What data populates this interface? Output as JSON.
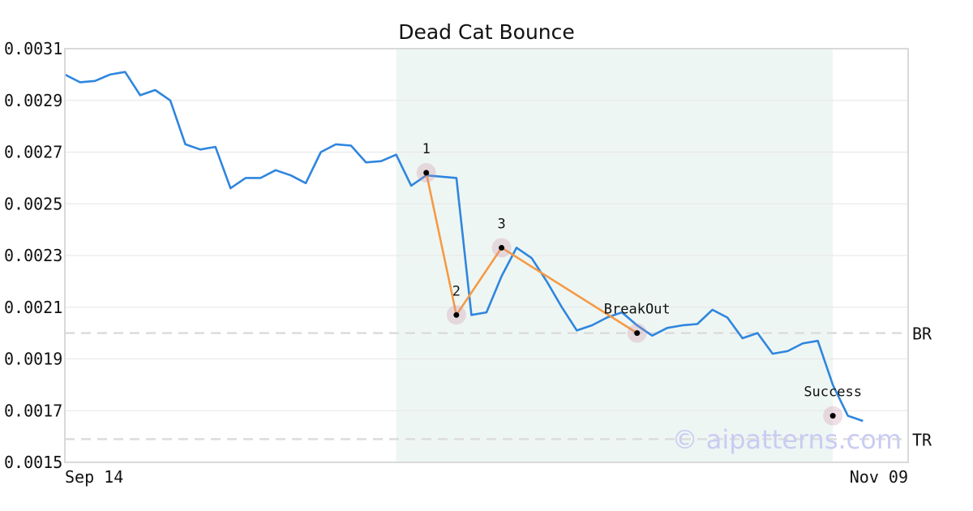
{
  "chart_data": {
    "type": "line",
    "title": "Dead Cat Bounce",
    "xlabel": "",
    "ylabel": "",
    "ylim": [
      0.0015,
      0.0031
    ],
    "y_ticks": [
      "0.0015",
      "0.0017",
      "0.0019",
      "0.0021",
      "0.0023",
      "0.0025",
      "0.0027",
      "0.0029",
      "0.0031"
    ],
    "x_ticks": [
      "Sep 14",
      "Nov 09"
    ],
    "x_count": 57,
    "grid": true,
    "series": [
      {
        "color": "#2f86de",
        "values": [
          0.003,
          0.00297,
          0.002975,
          0.003,
          0.00301,
          0.00292,
          0.00294,
          0.0029,
          0.00273,
          0.00271,
          0.00272,
          0.00256,
          0.0026,
          0.0026,
          0.00263,
          0.00261,
          0.00258,
          0.0027,
          0.00273,
          0.002725,
          0.00266,
          0.002665,
          0.00269,
          0.00257,
          0.00261,
          0.002605,
          0.0026,
          0.00207,
          0.00208,
          0.00222,
          0.00233,
          0.00229,
          0.0022,
          0.0021,
          0.00201,
          0.00203,
          0.00206,
          0.00208,
          0.00203,
          0.00199,
          0.00202,
          0.00203,
          0.002035,
          0.00209,
          0.00206,
          0.00198,
          0.002,
          0.00192,
          0.00193,
          0.00196,
          0.00197,
          0.0018,
          0.00168,
          0.00166
        ]
      }
    ],
    "pattern": {
      "color": "#f59a46",
      "points": [
        {
          "label": "1",
          "x": 24,
          "y": 0.00262
        },
        {
          "label": "2",
          "x": 26,
          "y": 0.00207
        },
        {
          "label": "3",
          "x": 29,
          "y": 0.00233
        },
        {
          "label": "BreakOut",
          "x": 38,
          "y": 0.002
        },
        {
          "label": "Success",
          "x": 51,
          "y": 0.00168
        }
      ]
    },
    "highlight_range": {
      "x_start": 22,
      "x_end": 51,
      "color": "#eef6f3"
    },
    "levels": [
      {
        "label": "BR",
        "y": 0.002
      },
      {
        "label": "TR",
        "y": 0.00159
      }
    ],
    "watermark": "© aipatterns.com"
  }
}
